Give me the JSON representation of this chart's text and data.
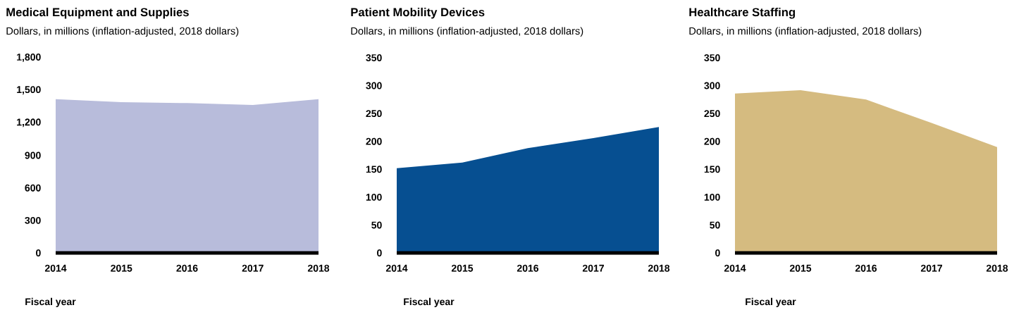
{
  "chart_data": [
    {
      "type": "area",
      "title": "Medical Equipment and Supplies",
      "subtitle": "Dollars, in millions (inflation-adjusted, 2018 dollars)",
      "xlabel": "Fiscal year",
      "x": [
        2014,
        2015,
        2016,
        2017,
        2018
      ],
      "values": [
        1419,
        1390,
        1382,
        1365,
        1419
      ],
      "color": "#b8bcdb",
      "xlim": [
        2014,
        2018
      ],
      "xticks": [
        2014,
        2015,
        2016,
        2017,
        2018
      ],
      "ylim": [
        0,
        1800
      ],
      "yticks": [
        0,
        300,
        600,
        900,
        {
          "value": 1200,
          "label": "1,200"
        },
        {
          "value": 1500,
          "label": "1,500"
        },
        {
          "value": 1800,
          "label": "1,800"
        }
      ]
    },
    {
      "type": "area",
      "title": "Patient Mobility Devices",
      "subtitle": "Dollars, in millions (inflation-adjusted, 2018 dollars)",
      "xlabel": "Fiscal year",
      "x": [
        2014,
        2015,
        2016,
        2017,
        2018
      ],
      "values": [
        152,
        162,
        188,
        206,
        226
      ],
      "color": "#064f91",
      "xlim": [
        2014,
        2018
      ],
      "xticks": [
        2014,
        2015,
        2016,
        2017,
        2018
      ],
      "ylim": [
        0,
        350
      ],
      "yticks": [
        0,
        50,
        100,
        150,
        200,
        250,
        300,
        350
      ]
    },
    {
      "type": "area",
      "title": "Healthcare Staffing",
      "subtitle": "Dollars, in millions (inflation-adjusted, 2018 dollars)",
      "xlabel": "Fiscal year",
      "x": [
        2014,
        2015,
        2016,
        2017,
        2018
      ],
      "values": [
        286,
        292,
        275,
        233,
        190
      ],
      "color": "#d5bb80",
      "xlim": [
        2014,
        2018
      ],
      "xticks": [
        2014,
        2015,
        2016,
        2017,
        2018
      ],
      "ylim": [
        0,
        350
      ],
      "yticks": [
        0,
        50,
        100,
        150,
        200,
        250,
        300,
        350
      ]
    }
  ]
}
